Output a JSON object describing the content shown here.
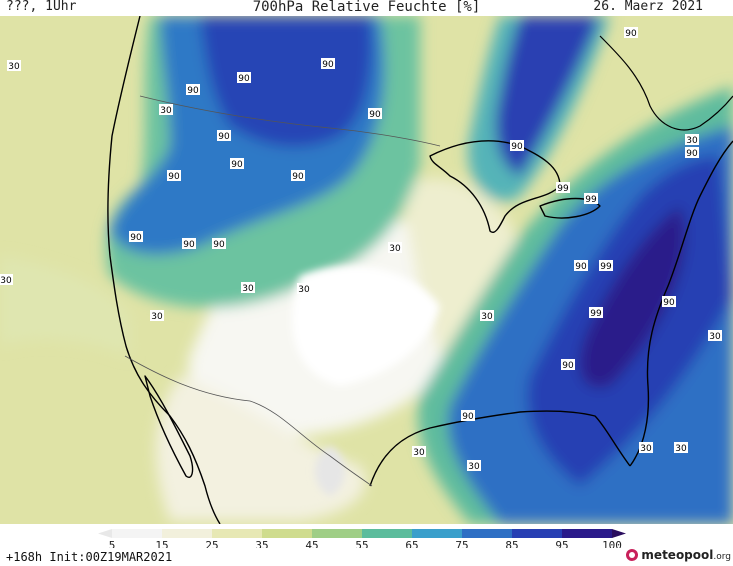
{
  "header": {
    "left": "???, 1Uhr",
    "title": "700hPa Relative Feuchte [%]",
    "date": "26. Maerz 2021"
  },
  "footer": {
    "init": "+168h  Init:00Z19MAR2021",
    "brand_main": "meteopool",
    "brand_suffix": ".org"
  },
  "legend": {
    "ticks": [
      "5",
      "15",
      "25",
      "35",
      "45",
      "55",
      "65",
      "75",
      "85",
      "95",
      "100"
    ],
    "colors": [
      "#e8e8e8",
      "#f4f4f4",
      "#f2f0dc",
      "#e7e8b4",
      "#cfdc8e",
      "#9fce86",
      "#5cbc9c",
      "#3a9fcb",
      "#2e6fc4",
      "#273fb3",
      "#2a1a8a",
      "#2a0d5e"
    ]
  },
  "map": {
    "contour_labels": [
      {
        "text": "30"
      },
      {
        "text": "30"
      },
      {
        "text": "30"
      },
      {
        "text": "90"
      },
      {
        "text": "90"
      },
      {
        "text": "90"
      },
      {
        "text": "90"
      },
      {
        "text": "90"
      },
      {
        "text": "90"
      },
      {
        "text": "90"
      },
      {
        "text": "90"
      },
      {
        "text": "90"
      },
      {
        "text": "90"
      },
      {
        "text": "90"
      },
      {
        "text": "30"
      },
      {
        "text": "30"
      },
      {
        "text": "30"
      },
      {
        "text": "30"
      },
      {
        "text": "30"
      },
      {
        "text": "90"
      },
      {
        "text": "90"
      },
      {
        "text": "99"
      },
      {
        "text": "99"
      },
      {
        "text": "90"
      },
      {
        "text": "99"
      },
      {
        "text": "99"
      },
      {
        "text": "90"
      },
      {
        "text": "90"
      },
      {
        "text": "30"
      },
      {
        "text": "90"
      },
      {
        "text": "30"
      },
      {
        "text": "30"
      },
      {
        "text": "30"
      },
      {
        "text": "30"
      },
      {
        "text": "30"
      },
      {
        "text": "90"
      }
    ]
  }
}
